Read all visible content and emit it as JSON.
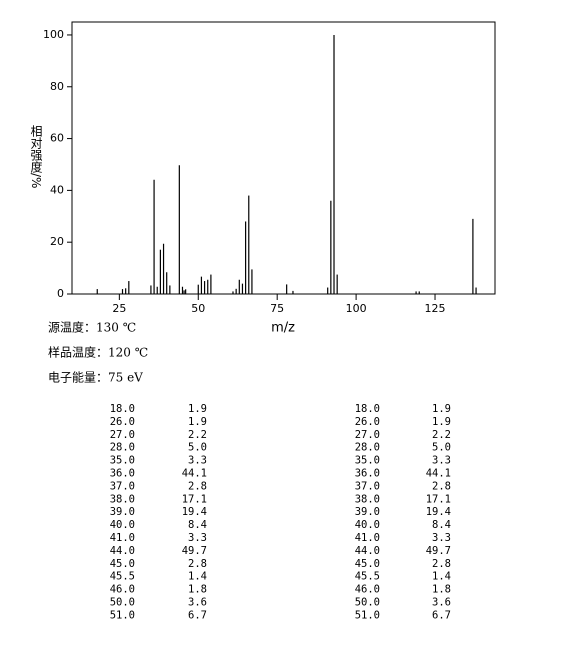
{
  "chart_data": {
    "type": "stick",
    "x_label": "m/z",
    "y_label": "相对强度/%",
    "x": [
      18,
      26,
      27,
      28,
      35,
      36,
      37,
      38,
      39,
      40,
      41,
      44,
      45,
      45.5,
      46,
      50,
      51,
      52,
      53,
      54,
      61,
      62,
      63,
      64,
      65,
      66,
      67,
      78,
      80,
      91,
      92,
      93,
      94,
      119,
      120,
      137,
      138
    ],
    "values": [
      1.9,
      1.9,
      2.2,
      5.0,
      3.3,
      44.1,
      2.8,
      17.1,
      19.4,
      8.4,
      3.3,
      49.7,
      2.8,
      1.4,
      1.8,
      3.6,
      6.7,
      5,
      5.5,
      7.5,
      1,
      2,
      5.5,
      4,
      28,
      38,
      9.5,
      3.7,
      1.2,
      2.5,
      36,
      100,
      7.5,
      1,
      1,
      29,
      2.5
    ],
    "color": "#000000",
    "xlim": [
      10,
      144
    ],
    "xticks": [
      25,
      50,
      75,
      100,
      125
    ],
    "ylim": [
      0,
      105
    ],
    "yticks": [
      0,
      20,
      40,
      60,
      80,
      100
    ]
  },
  "conditions": [
    "源温度：130 ℃",
    "样品温度：120 ℃",
    "电子能量：75 eV"
  ],
  "tables": [
    {
      "rows": [
        [
          "18.0",
          "1.9"
        ],
        [
          "26.0",
          "1.9"
        ],
        [
          "27.0",
          "2.2"
        ],
        [
          "28.0",
          "5.0"
        ],
        [
          "35.0",
          "3.3"
        ],
        [
          "36.0",
          "44.1"
        ],
        [
          "37.0",
          "2.8"
        ],
        [
          "38.0",
          "17.1"
        ],
        [
          "39.0",
          "19.4"
        ],
        [
          "40.0",
          "8.4"
        ],
        [
          "41.0",
          "3.3"
        ],
        [
          "44.0",
          "49.7"
        ],
        [
          "45.0",
          "2.8"
        ],
        [
          "45.5",
          "1.4"
        ],
        [
          "46.0",
          "1.8"
        ],
        [
          "50.0",
          "3.6"
        ],
        [
          "51.0",
          "6.7"
        ]
      ]
    },
    {
      "rows": [
        [
          "18.0",
          "1.9"
        ],
        [
          "26.0",
          "1.9"
        ],
        [
          "27.0",
          "2.2"
        ],
        [
          "28.0",
          "5.0"
        ],
        [
          "35.0",
          "3.3"
        ],
        [
          "36.0",
          "44.1"
        ],
        [
          "37.0",
          "2.8"
        ],
        [
          "38.0",
          "17.1"
        ],
        [
          "39.0",
          "19.4"
        ],
        [
          "40.0",
          "8.4"
        ],
        [
          "41.0",
          "3.3"
        ],
        [
          "44.0",
          "49.7"
        ],
        [
          "45.0",
          "2.8"
        ],
        [
          "45.5",
          "1.4"
        ],
        [
          "46.0",
          "1.8"
        ],
        [
          "50.0",
          "3.6"
        ],
        [
          "51.0",
          "6.7"
        ]
      ]
    }
  ]
}
